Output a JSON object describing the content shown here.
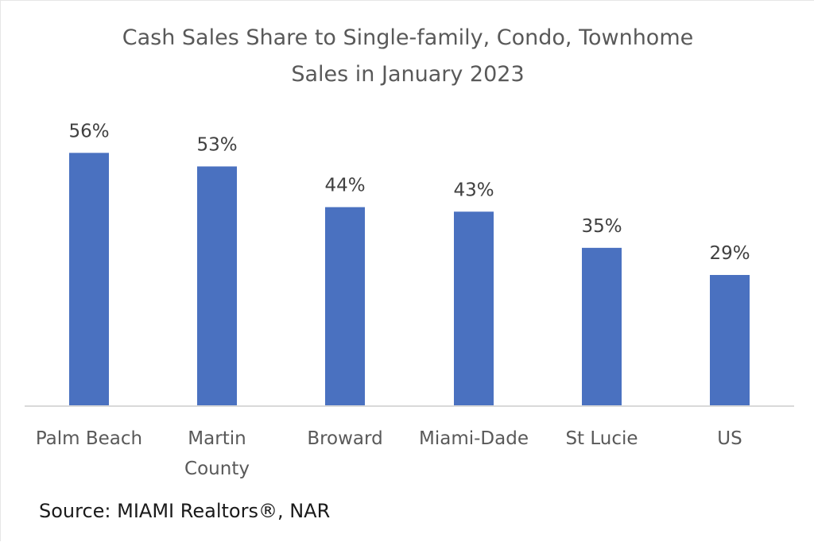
{
  "chart_data": {
    "type": "bar",
    "title": "Cash Sales Share to Single-family, Condo, Townhome Sales in January 2023",
    "title_lines": [
      "Cash Sales Share to Single-family, Condo, Townhome",
      "Sales in January 2023"
    ],
    "categories": [
      "Palm Beach",
      "Martin County",
      "Broward",
      "Miami-Dade",
      "St Lucie",
      "US"
    ],
    "category_lines": [
      [
        "Palm Beach"
      ],
      [
        "Martin",
        "County"
      ],
      [
        "Broward"
      ],
      [
        "Miami-Dade"
      ],
      [
        "St Lucie"
      ],
      [
        "US"
      ]
    ],
    "values": [
      56,
      53,
      44,
      43,
      35,
      29
    ],
    "data_labels": [
      "56%",
      "53%",
      "44%",
      "43%",
      "35%",
      "29%"
    ],
    "unit": "%",
    "xlabel": "",
    "ylabel": "",
    "ylim": [
      0,
      60
    ],
    "grid": false,
    "legend": "none",
    "bar_color": "#4a71c0",
    "axis_color": "#d9d9d9"
  },
  "source": "Source: MIAMI Realtors®, NAR"
}
